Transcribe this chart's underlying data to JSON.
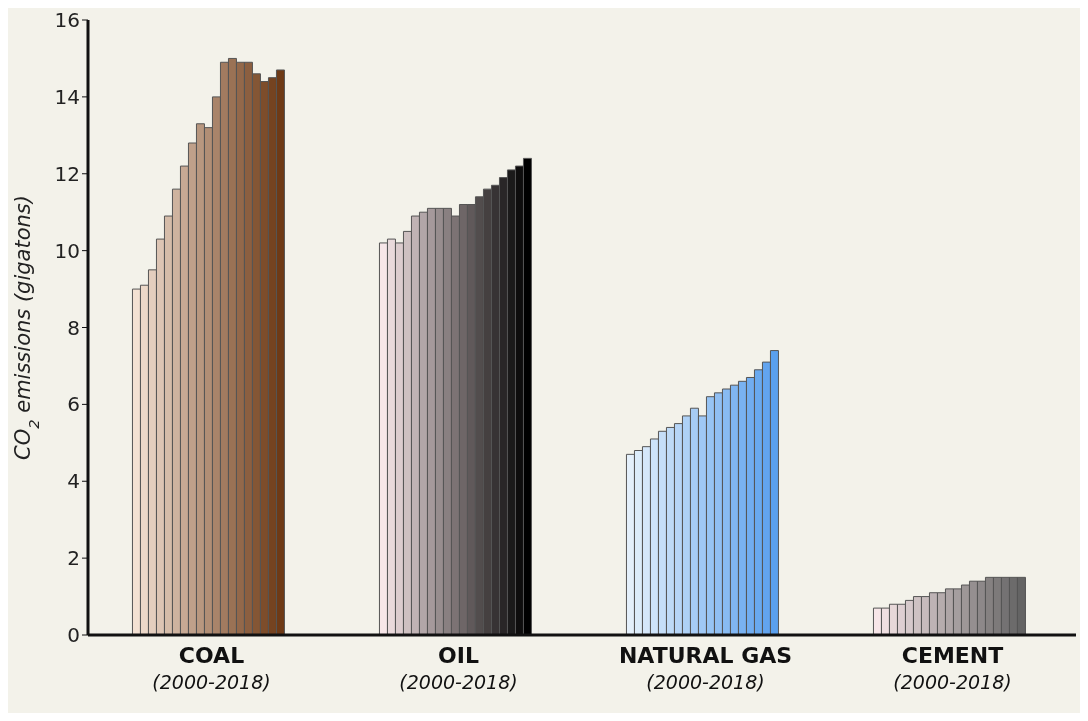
{
  "chart_data": {
    "type": "bar",
    "ylabel": "CO$_{2}$ emissions (gigatons)",
    "categories": [
      "COAL\n(2000-2018)",
      "OIL\n(2000-2018)",
      "NATURAL GAS\n(2000-2018)",
      "CEMENT\n(2000-2018)"
    ],
    "ylim": [
      0,
      16
    ],
    "yticks": [
      0,
      2,
      4,
      6,
      8,
      10,
      12,
      14,
      16
    ],
    "grid": false,
    "legend": false,
    "series": [
      {
        "values": [
          9.0,
          10.2,
          4.7,
          0.7
        ],
        "colors": [
          "#f3e1d3",
          "#f7e6e8",
          "#e4f0fb",
          "#f7e6e8"
        ]
      },
      {
        "values": [
          9.1,
          10.3,
          4.8,
          0.7
        ],
        "colors": [
          "#ecd8c8",
          "#e9d9db",
          "#dcecfa",
          "#efdfe1"
        ]
      },
      {
        "values": [
          9.5,
          10.2,
          4.9,
          0.8
        ],
        "colors": [
          "#e4cebe",
          "#dcccce",
          "#d5e7fa",
          "#e7d8d9"
        ]
      },
      {
        "values": [
          10.3,
          10.5,
          5.1,
          0.8
        ],
        "colors": [
          "#ddc5b4",
          "#cec0c1",
          "#cde3f9",
          "#decfd2"
        ]
      },
      {
        "values": [
          10.9,
          10.9,
          5.3,
          0.9
        ],
        "colors": [
          "#d5bca9",
          "#c0b3b4",
          "#c5def8",
          "#d6c9cb"
        ]
      },
      {
        "values": [
          11.6,
          11.0,
          5.4,
          1.0
        ],
        "colors": [
          "#ceb39f",
          "#b2a6a8",
          "#bedaf7",
          "#cec2c3"
        ]
      },
      {
        "values": [
          12.2,
          11.1,
          5.5,
          1.0
        ],
        "colors": [
          "#c7a994",
          "#a5999b",
          "#b6d5f7",
          "#c6bbbc"
        ]
      },
      {
        "values": [
          12.8,
          11.1,
          5.7,
          1.1
        ],
        "colors": [
          "#bfa08a",
          "#978d8e",
          "#aed1f6",
          "#beb3b5"
        ]
      },
      {
        "values": [
          13.3,
          11.1,
          5.9,
          1.1
        ],
        "colors": [
          "#b8977f",
          "#898081",
          "#a7ccf5",
          "#b6acad"
        ]
      },
      {
        "values": [
          13.2,
          10.9,
          5.7,
          1.2
        ],
        "colors": [
          "#b18e75",
          "#7c7374",
          "#9fc8f5",
          "#aea5a6"
        ]
      },
      {
        "values": [
          14.0,
          11.2,
          6.2,
          1.2
        ],
        "colors": [
          "#a9846a",
          "#6e6667",
          "#97c4f4",
          "#a59e9f"
        ]
      },
      {
        "values": [
          14.9,
          11.2,
          6.3,
          1.3
        ],
        "colors": [
          "#a27b60",
          "#60595a",
          "#90bff3",
          "#9d9797"
        ]
      },
      {
        "values": [
          15.0,
          11.4,
          6.4,
          1.4
        ],
        "colors": [
          "#9a7255",
          "#524d4d",
          "#88bbf2",
          "#958f90"
        ]
      },
      {
        "values": [
          14.9,
          11.6,
          6.5,
          1.4
        ],
        "colors": [
          "#93684a",
          "#454040",
          "#80b6f2",
          "#8d8889"
        ]
      },
      {
        "values": [
          14.9,
          11.7,
          6.6,
          1.5
        ],
        "colors": [
          "#8c5f40",
          "#373334",
          "#79b2f1",
          "#858181"
        ]
      },
      {
        "values": [
          14.6,
          11.9,
          6.7,
          1.5
        ],
        "colors": [
          "#845635",
          "#292627",
          "#71adf0",
          "#7d7a7a"
        ]
      },
      {
        "values": [
          14.4,
          12.1,
          6.9,
          1.5
        ],
        "colors": [
          "#7d4d2b",
          "#1b1a1a",
          "#69a9ef",
          "#747273"
        ]
      },
      {
        "values": [
          14.5,
          12.2,
          7.1,
          1.5
        ],
        "colors": [
          "#754320",
          "#0e0d0d",
          "#62a4ef",
          "#6c6b6b"
        ]
      },
      {
        "values": [
          14.7,
          12.4,
          7.4,
          1.5
        ],
        "colors": [
          "#6e3a16",
          "#000000",
          "#5aa0ee",
          "#646464"
        ]
      }
    ]
  }
}
